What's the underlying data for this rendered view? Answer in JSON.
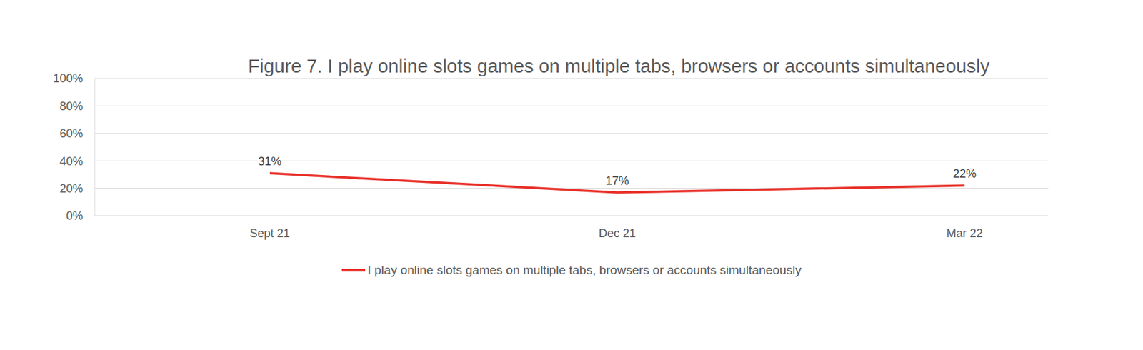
{
  "chart_data": {
    "type": "line",
    "title": "Figure 7. I play online slots games on multiple tabs, browsers or accounts simultaneously",
    "categories": [
      "Sept 21",
      "Dec 21",
      "Mar 22"
    ],
    "series": [
      {
        "name": "I play online slots games on multiple tabs, browsers or accounts simultaneously",
        "color": "#e8312a",
        "values": [
          31,
          17,
          22
        ],
        "value_labels": [
          "31%",
          "17%",
          "22%"
        ]
      }
    ],
    "ylim": [
      0,
      100
    ],
    "yticks": [
      {
        "value": 0,
        "label": "0%"
      },
      {
        "value": 20,
        "label": "20%"
      },
      {
        "value": 40,
        "label": "40%"
      },
      {
        "value": 60,
        "label": "60%"
      },
      {
        "value": 80,
        "label": "80%"
      },
      {
        "value": 100,
        "label": "100%"
      }
    ],
    "grid": true,
    "data_labels": true,
    "legend": "bottom"
  }
}
